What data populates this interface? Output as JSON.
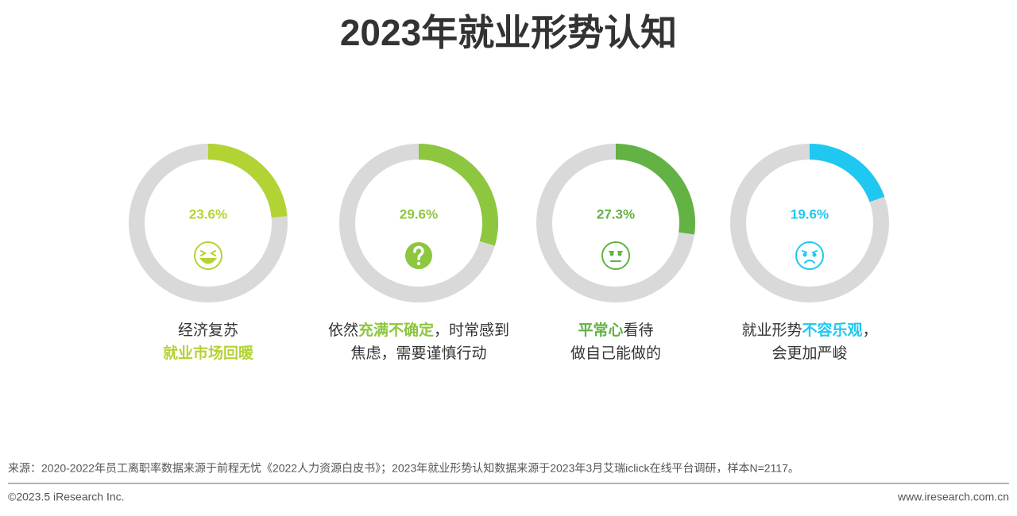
{
  "title": "2023年就业形势认知",
  "chart_data": [
    {
      "type": "donut",
      "values": [
        23.6
      ],
      "value_labels": [
        "23.6%"
      ],
      "color": "#b3d334",
      "caption": [
        [
          {
            "text": "经济复苏",
            "highlight": false
          }
        ],
        [
          {
            "text": "就业市场回暖",
            "highlight": true
          }
        ]
      ]
    },
    {
      "type": "donut",
      "values": [
        29.6
      ],
      "value_labels": [
        "29.6%"
      ],
      "color": "#8dc63f",
      "caption": [
        [
          {
            "text": "依然",
            "highlight": false
          },
          {
            "text": "充满不确定",
            "highlight": true
          },
          {
            "text": "，时常感到",
            "highlight": false
          }
        ],
        [
          {
            "text": "焦虑，需要谨慎行动",
            "highlight": false
          }
        ]
      ]
    },
    {
      "type": "donut",
      "values": [
        27.3
      ],
      "value_labels": [
        "27.3%"
      ],
      "color": "#62b244",
      "caption": [
        [
          {
            "text": "平常心",
            "highlight": true
          },
          {
            "text": "看待",
            "highlight": false
          }
        ],
        [
          {
            "text": "做自己能做的",
            "highlight": false
          }
        ]
      ]
    },
    {
      "type": "donut",
      "values": [
        19.6
      ],
      "value_labels": [
        "19.6%"
      ],
      "color": "#1ec8f0",
      "caption": [
        [
          {
            "text": "就业形势",
            "highlight": false
          },
          {
            "text": "不容乐观",
            "highlight": true
          },
          {
            "text": "，",
            "highlight": false
          }
        ],
        [
          {
            "text": "会更加严峻",
            "highlight": false
          }
        ]
      ]
    }
  ],
  "source": "来源：2020-2022年员工离职率数据来源于前程无忧《2022人力资源白皮书》；2023年就业形势认知数据来源于2023年3月艾瑞iclick在线平台调研，样本N=2117。",
  "copyright": "©2023.5 iResearch Inc.",
  "website": "www.iresearch.com.cn"
}
